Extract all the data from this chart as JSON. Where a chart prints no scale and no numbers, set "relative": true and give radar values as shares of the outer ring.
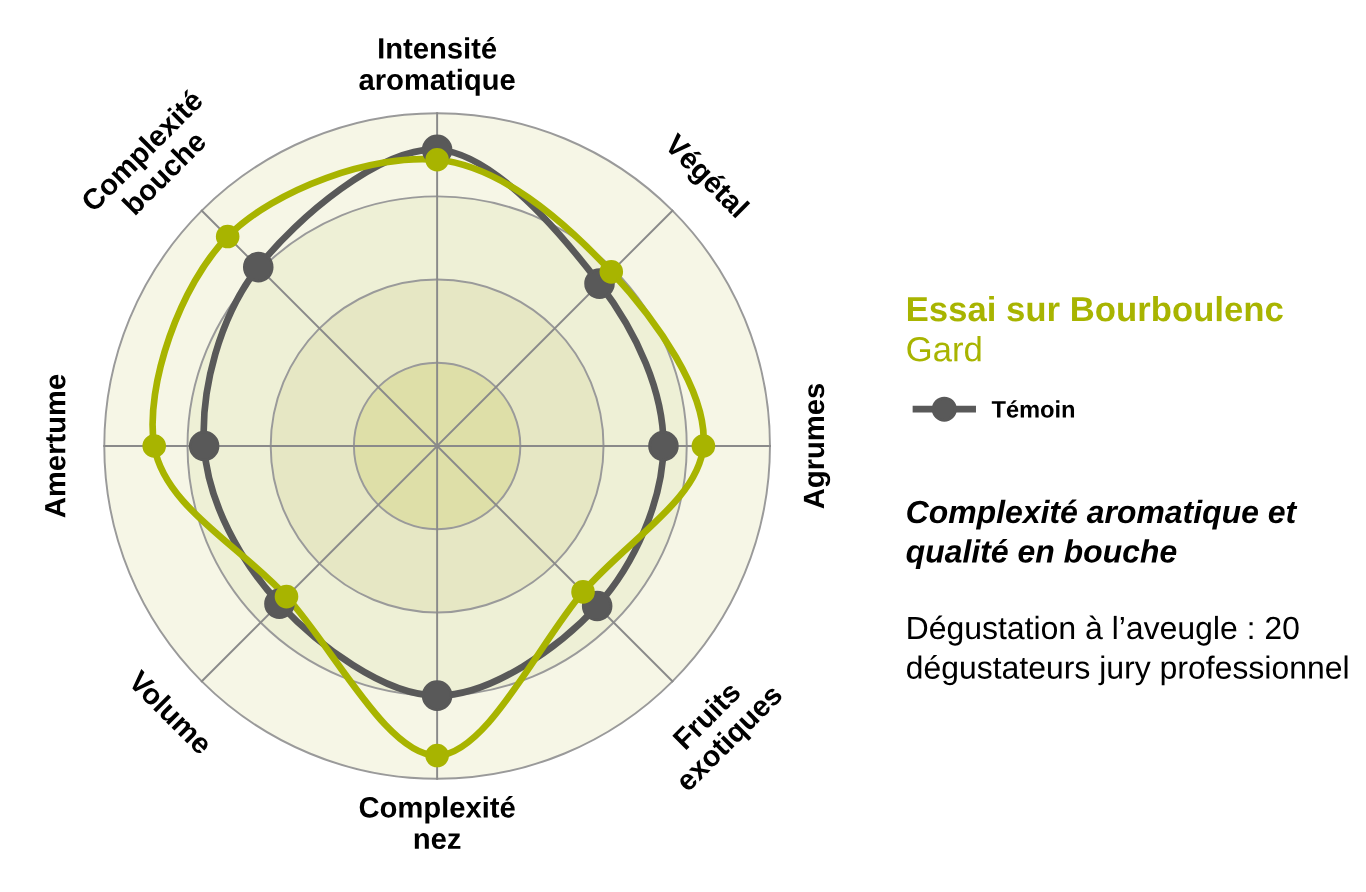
{
  "chart_data": {
    "type": "radar",
    "title": "Essai sur Bourboulenc",
    "subtitle": "Gard",
    "relative": true,
    "categories": [
      "Intensité aromatique",
      "Végétal",
      "Agrumes",
      "Fruits exotiques",
      "Complexité nez",
      "Volume",
      "Amertume",
      "Complexité bouche"
    ],
    "series": [
      {
        "name": "Témoin",
        "color": "#595959",
        "values": [
          0.89,
          0.69,
          0.68,
          0.68,
          0.75,
          0.67,
          0.7,
          0.76
        ]
      },
      {
        "color": "#a8b400",
        "values": [
          0.86,
          0.74,
          0.8,
          0.62,
          0.93,
          0.64,
          0.85,
          0.89
        ]
      }
    ],
    "marker": "circle",
    "line_style": "solid",
    "grid": true,
    "legend": "right",
    "annotations": [
      "Complexité aromatique et qualité en bouche",
      "Dégustation à l’aveugle : 20 dégustateurs jury professionnel"
    ]
  }
}
